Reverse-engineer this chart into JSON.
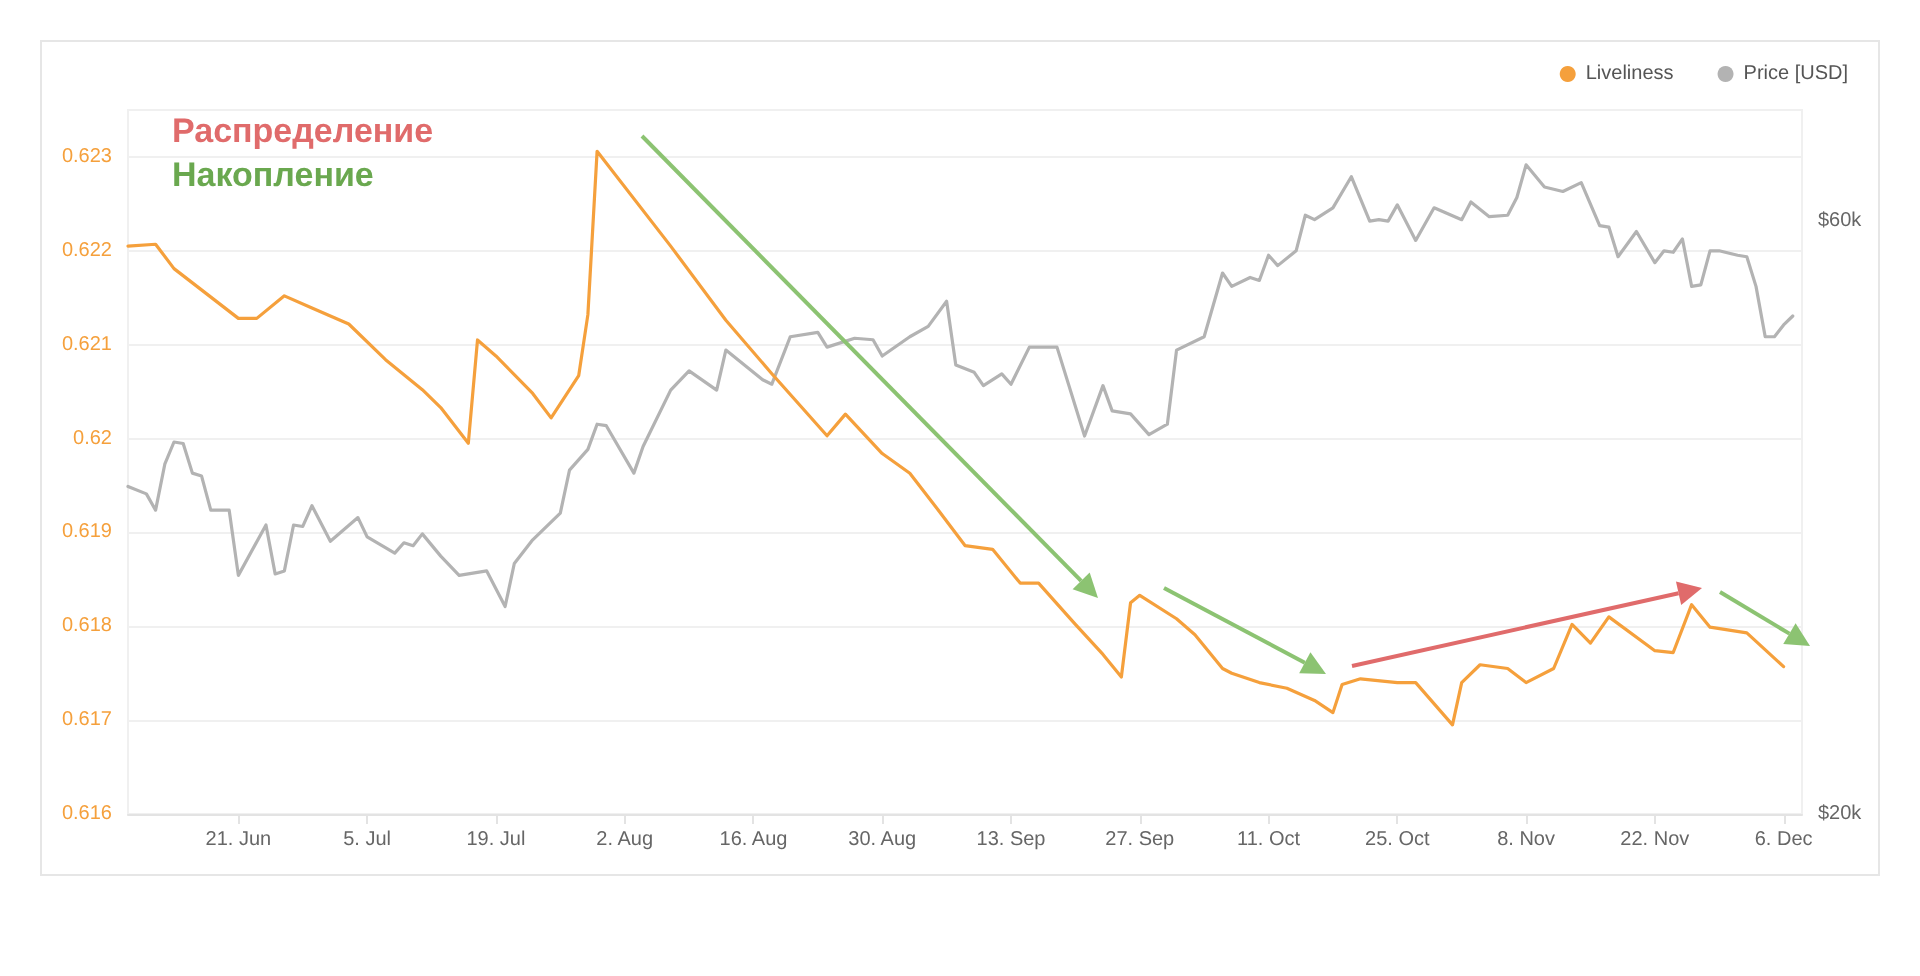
{
  "chart_data": {
    "type": "line",
    "annotations": [
      "Распределение",
      "Накопление"
    ],
    "series": [
      {
        "name": "Liveliness",
        "color": "#f5a03c",
        "x": [
          "--06-09",
          "--06-12",
          "--06-14",
          "--06-21",
          "--06-23",
          "--06-26",
          "--06-29",
          "--07-03",
          "--07-07",
          "--07-11",
          "--07-13",
          "--07-16",
          "--07-17",
          "--07-19",
          "--07-23",
          "--07-25",
          "--07-28",
          "--07-29",
          "--07-30",
          "--08-07",
          "--08-13",
          "--08-18",
          "--08-24",
          "--08-26",
          "--08-30",
          "--09-02",
          "--09-05",
          "--09-08",
          "--09-11",
          "--09-14",
          "--09-16",
          "--09-20",
          "--09-23",
          "--09-25",
          "--09-26",
          "--09-27",
          "--10-01",
          "--10-03",
          "--10-06",
          "--10-07",
          "--10-10",
          "--10-13",
          "--10-16",
          "--10-18",
          "--10-19",
          "--10-21",
          "--10-25",
          "--10-27",
          "--10-31",
          "--11-01",
          "--11-03",
          "--11-06",
          "--11-08",
          "--11-11",
          "--11-13",
          "--11-15",
          "--11-17",
          "--11-22",
          "--11-24",
          "--11-26",
          "--11-28",
          "--12-02",
          "--12-06"
        ],
        "values": [
          0.62205,
          0.62207,
          0.62181,
          0.62128,
          0.62128,
          0.62152,
          0.62139,
          0.62122,
          0.62084,
          0.62052,
          0.62033,
          0.61995,
          0.62105,
          0.62088,
          0.62048,
          0.62022,
          0.62067,
          0.62132,
          0.62306,
          0.62205,
          0.62126,
          0.62069,
          0.62003,
          0.62026,
          0.61984,
          0.61963,
          0.61925,
          0.61886,
          0.61882,
          0.61846,
          0.61846,
          0.61802,
          0.6177,
          0.61746,
          0.61825,
          0.61833,
          0.61808,
          0.61791,
          0.61755,
          0.6175,
          0.6174,
          0.61734,
          0.61721,
          0.61708,
          0.61738,
          0.61744,
          0.6174,
          0.6174,
          0.61695,
          0.6174,
          0.61759,
          0.61755,
          0.6174,
          0.61755,
          0.61802,
          0.61782,
          0.6181,
          0.61774,
          0.61772,
          0.61823,
          0.61799,
          0.61793,
          0.61757
        ]
      },
      {
        "name": "Price [USD]",
        "color": "#b3b3b3",
        "axis": "y2",
        "x": [
          "--06-09",
          "--06-11",
          "--06-12",
          "--06-13",
          "--06-14",
          "--06-15",
          "--06-16",
          "--06-17",
          "--06-18",
          "--06-20",
          "--06-21",
          "--06-24",
          "--06-25",
          "--06-26",
          "--06-27",
          "--06-28",
          "--06-29",
          "--07-01",
          "--07-04",
          "--07-05",
          "--07-08",
          "--07-09",
          "--07-10",
          "--07-11",
          "--07-13",
          "--07-15",
          "--07-18",
          "--07-20",
          "--07-21",
          "--07-23",
          "--07-26",
          "--07-27",
          "--07-29",
          "--07-30",
          "--07-31",
          "--08-03",
          "--08-04",
          "--08-07",
          "--08-09",
          "--08-12",
          "--08-13",
          "--08-17",
          "--08-18",
          "--08-20",
          "--08-23",
          "--08-24",
          "--08-27",
          "--08-29",
          "--08-30",
          "--09-02",
          "--09-04",
          "--09-06",
          "--09-07",
          "--09-09",
          "--09-10",
          "--09-12",
          "--09-13",
          "--09-15",
          "--09-18",
          "--09-21",
          "--09-23",
          "--09-24",
          "--09-26",
          "--09-28",
          "--09-30",
          "--10-01",
          "--10-04",
          "--10-06",
          "--10-07",
          "--10-09",
          "--10-10",
          "--10-11",
          "--10-12",
          "--10-14",
          "--10-15",
          "--10-16",
          "--10-18",
          "--10-20",
          "--10-22",
          "--10-23",
          "--10-24",
          "--10-25",
          "--10-27",
          "--10-29",
          "--11-01",
          "--11-02",
          "--11-04",
          "--11-06",
          "--11-07",
          "--11-08",
          "--11-10",
          "--11-12",
          "--11-14",
          "--11-16",
          "--11-17",
          "--11-18",
          "--11-20",
          "--11-22",
          "--11-23",
          "--11-24",
          "--11-25",
          "--11-26",
          "--11-27",
          "--11-28",
          "--11-29",
          "--12-01",
          "--12-02",
          "--12-03",
          "--12-04",
          "--12-05",
          "--12-06",
          "--12-07"
        ],
        "values": [
          42100,
          41600,
          40500,
          43600,
          45100,
          45000,
          43000,
          42800,
          40500,
          40500,
          36100,
          39500,
          36200,
          36400,
          39500,
          39400,
          40800,
          38400,
          40000,
          38700,
          37600,
          38300,
          38100,
          38900,
          37400,
          36100,
          36400,
          34000,
          36900,
          38500,
          40300,
          43200,
          44600,
          46300,
          46200,
          43000,
          44800,
          48600,
          49900,
          48600,
          51300,
          49300,
          49000,
          52200,
          52500,
          51500,
          52100,
          52000,
          50900,
          52200,
          52900,
          54600,
          50300,
          49800,
          48900,
          49700,
          49000,
          51500,
          51500,
          45500,
          48900,
          47200,
          47000,
          45600,
          46300,
          51300,
          52200,
          56500,
          55600,
          56200,
          56000,
          57700,
          57000,
          58000,
          60400,
          60100,
          60900,
          63000,
          60000,
          60100,
          60000,
          61100,
          58700,
          60900,
          60100,
          61300,
          60300,
          60400,
          61600,
          63800,
          62300,
          62000,
          62600,
          59700,
          59600,
          57600,
          59300,
          57200,
          58000,
          57900,
          58800,
          55600,
          55700,
          58000,
          58000,
          57700,
          57600,
          55600,
          52200,
          52200,
          53000,
          53600
        ]
      }
    ],
    "xlim": [
      "--06-09",
      "--12-08"
    ],
    "xticks": [
      {
        "value": "--06-21",
        "label": "21. Jun"
      },
      {
        "value": "--07-05",
        "label": "5. Jul"
      },
      {
        "value": "--07-19",
        "label": "19. Jul"
      },
      {
        "value": "--08-02",
        "label": "2. Aug"
      },
      {
        "value": "--08-16",
        "label": "16. Aug"
      },
      {
        "value": "--08-30",
        "label": "30. Aug"
      },
      {
        "value": "--09-13",
        "label": "13. Sep"
      },
      {
        "value": "--09-27",
        "label": "27. Sep"
      },
      {
        "value": "--10-11",
        "label": "11. Oct"
      },
      {
        "value": "--10-25",
        "label": "25. Oct"
      },
      {
        "value": "--11-08",
        "label": "8. Nov"
      },
      {
        "value": "--11-22",
        "label": "22. Nov"
      },
      {
        "value": "--12-06",
        "label": "6. Dec"
      }
    ],
    "ylim": [
      0.616,
      0.6235
    ],
    "yticks": [
      0.616,
      0.617,
      0.618,
      0.619,
      0.62,
      0.621,
      0.622,
      0.623
    ],
    "y2lim": [
      20000,
      67500
    ],
    "y2ticks": [
      {
        "value": 20000,
        "label": "$20k"
      },
      {
        "value": 60000,
        "label": "$60k"
      }
    ],
    "grid": "y",
    "legend": "top right",
    "marker": "none",
    "line_style": "solid"
  }
}
